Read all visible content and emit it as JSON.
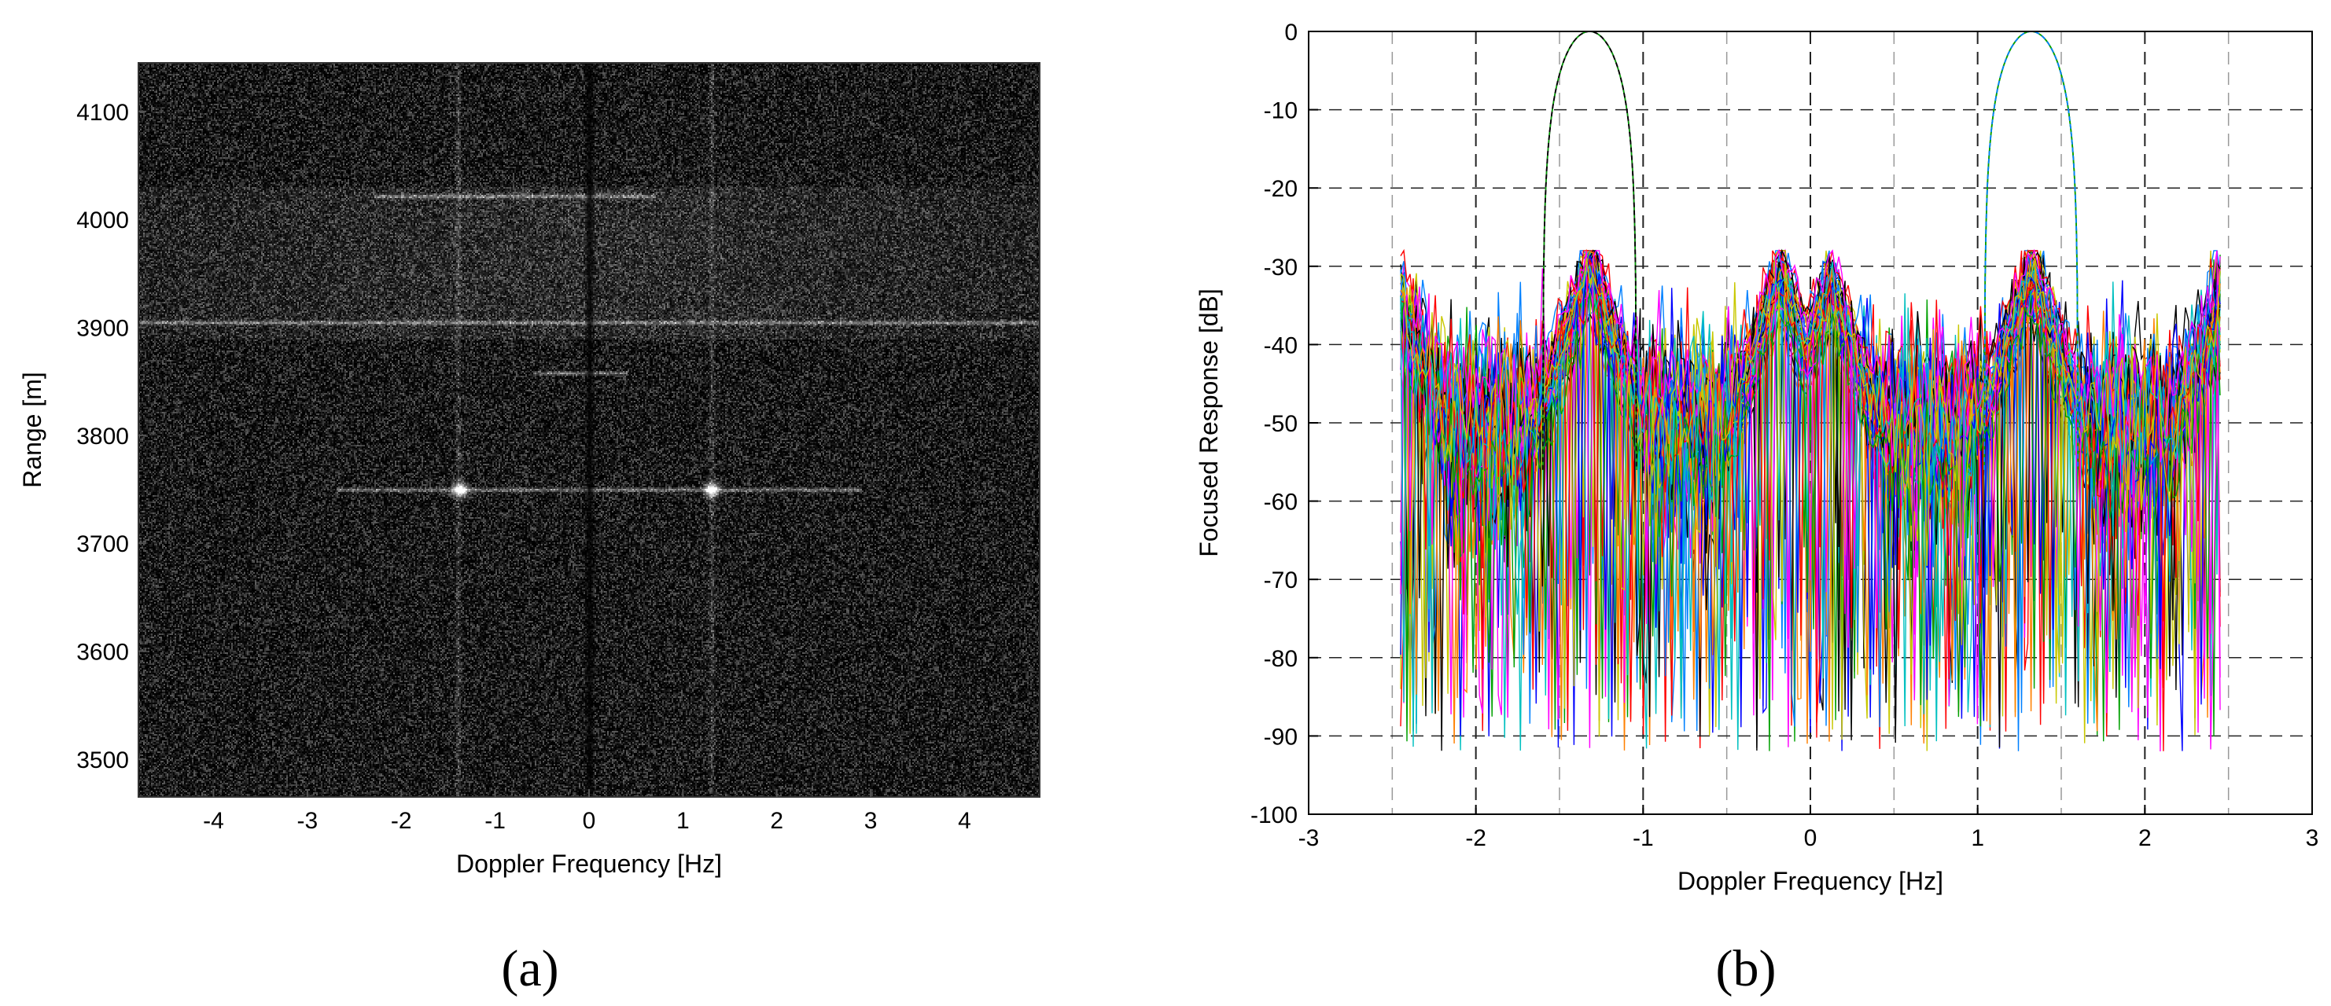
{
  "panels": [
    {
      "label": "(a)"
    },
    {
      "label": "(b)"
    }
  ],
  "chart_data": [
    {
      "type": "heatmap",
      "panel": "(a)",
      "xlabel": "Doppler Frequency [Hz]",
      "ylabel": "Range [m]",
      "xlim": [
        -4.8,
        4.8
      ],
      "ylim": [
        3465,
        4145
      ],
      "xticks": [
        -4,
        -3,
        -2,
        -1,
        0,
        1,
        2,
        3,
        4
      ],
      "yticks": [
        3500,
        3600,
        3700,
        3800,
        3900,
        4000,
        4100
      ],
      "colormap": "gray",
      "bright_targets": [
        {
          "doppler_hz": -1.38,
          "range_m": 3750
        },
        {
          "doppler_hz": 1.3,
          "range_m": 3750
        }
      ],
      "streaks": [
        {
          "orientation": "horizontal",
          "range_m": 3750,
          "doppler_from_hz": -2.7,
          "doppler_to_hz": 2.9
        },
        {
          "orientation": "horizontal",
          "range_m": 4022,
          "doppler_from_hz": -2.3,
          "doppler_to_hz": 0.7
        },
        {
          "orientation": "horizontal",
          "range_m": 3905,
          "doppler_from_hz": -4.8,
          "doppler_to_hz": 4.8
        },
        {
          "orientation": "horizontal",
          "range_m": 3858,
          "doppler_from_hz": -0.6,
          "doppler_to_hz": 0.4
        },
        {
          "orientation": "vertical",
          "doppler_hz": -1.4,
          "range_from_m": 3465,
          "range_to_m": 4145
        },
        {
          "orientation": "vertical",
          "doppler_hz": 1.3,
          "range_from_m": 3465,
          "range_to_m": 4145
        }
      ],
      "dark_column_hz": 0,
      "clutter_band_m": [
        3890,
        4030
      ]
    },
    {
      "type": "line",
      "panel": "(b)",
      "xlabel": "Doppler Frequency [Hz]",
      "ylabel": "Focused Response [dB]",
      "xlim": [
        -3,
        3
      ],
      "ylim": [
        -100,
        0
      ],
      "xticks": [
        -3,
        -2,
        -1,
        0,
        1,
        2,
        3
      ],
      "yticks": [
        0,
        -10,
        -20,
        -30,
        -40,
        -50,
        -60,
        -70,
        -80,
        -90,
        -100
      ],
      "grid": true,
      "grid_style": "dashed",
      "data_x_range": [
        -2.45,
        2.45
      ],
      "mainlobes": [
        {
          "center_hz": -1.32,
          "peak_db": 0
        },
        {
          "center_hz": 1.32,
          "peak_db": 0
        }
      ],
      "sidelobe_peaks": [
        {
          "center_hz": -1.32,
          "peak_db": -29
        },
        {
          "center_hz": 1.32,
          "peak_db": -29.5
        },
        {
          "center_hz": -0.18,
          "peak_db": -30
        },
        {
          "center_hz": 0.12,
          "peak_db": -31
        }
      ],
      "floor_db": [
        -45,
        -58
      ],
      "dips_min_db": -94,
      "series_count": 60,
      "series_colors": [
        "#0000ff",
        "#ff0000",
        "#00a000",
        "#ff00ff",
        "#00c0c0",
        "#c8c800",
        "#000000",
        "#0080ff",
        "#ff8000"
      ]
    }
  ]
}
